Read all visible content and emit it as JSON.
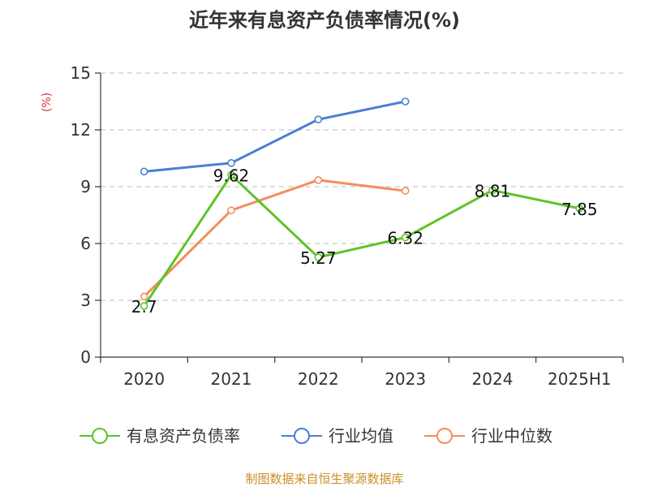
{
  "chart_data": {
    "type": "line",
    "title": "近年来有息资产负债率情况(%)",
    "ylabel": "(%)",
    "xlabel": "",
    "ylim": [
      0,
      15
    ],
    "yticks": [
      0,
      3,
      6,
      9,
      12,
      15
    ],
    "categories": [
      "2020",
      "2021",
      "2022",
      "2023",
      "2024",
      "2025H1"
    ],
    "grid": true,
    "legend_position": "bottom",
    "series": [
      {
        "name": "有息资产负债率",
        "color": "#5cc427",
        "values": [
          2.7,
          9.62,
          5.27,
          6.32,
          8.81,
          7.85
        ],
        "labels": [
          "2.7",
          "9.62",
          "5.27",
          "6.32",
          "8.81",
          "7.85"
        ]
      },
      {
        "name": "行业均值",
        "color": "#4a7fd6",
        "values": [
          9.8,
          10.25,
          12.55,
          13.5,
          null,
          null
        ]
      },
      {
        "name": "行业中位数",
        "color": "#f58d5c",
        "values": [
          3.2,
          7.75,
          9.35,
          8.78,
          null,
          null
        ]
      }
    ]
  },
  "source": "制图数据来自恒生聚源数据库"
}
